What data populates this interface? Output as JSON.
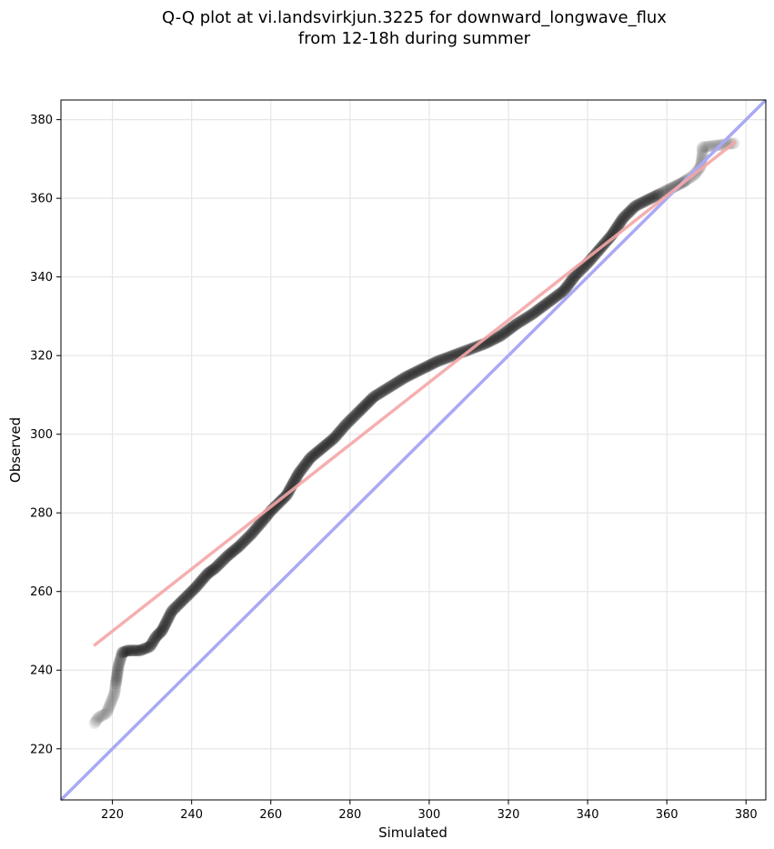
{
  "chart_data": {
    "type": "scatter",
    "title_lines": [
      "Q-Q plot at vi.landsvirkjun.3225 for downward_longwave_flux",
      "from 12-18h during summer"
    ],
    "xlabel": "Simulated",
    "ylabel": "Observed",
    "xlim": [
      207,
      385
    ],
    "ylim": [
      207,
      385
    ],
    "xticks": [
      220,
      240,
      260,
      280,
      300,
      320,
      340,
      360,
      380
    ],
    "yticks": [
      220,
      240,
      260,
      280,
      300,
      320,
      340,
      360,
      380
    ],
    "grid": true,
    "colors": {
      "points": "#000000",
      "fit_line": "#f4a6a6",
      "identity_line": "#a9a9f4",
      "grid": "#e6e6e6"
    },
    "identity_line": {
      "from": [
        207,
        207
      ],
      "to": [
        385,
        385
      ]
    },
    "fit_line": {
      "from": [
        215.3,
        246.2
      ],
      "to": [
        377.5,
        374.5
      ]
    },
    "quantile_curve": [
      [
        215.5,
        226.5
      ],
      [
        216.5,
        228
      ],
      [
        218.5,
        229
      ],
      [
        219.5,
        231.5
      ],
      [
        220.5,
        234
      ],
      [
        221,
        237.5
      ],
      [
        221.5,
        241
      ],
      [
        222.5,
        244.5
      ],
      [
        224,
        245
      ],
      [
        227,
        245
      ],
      [
        229.5,
        246
      ],
      [
        231,
        248.5
      ],
      [
        232.5,
        250
      ],
      [
        233.5,
        252
      ],
      [
        235,
        255
      ],
      [
        238,
        258
      ],
      [
        241,
        261
      ],
      [
        244,
        264.5
      ],
      [
        246,
        266
      ],
      [
        249,
        269
      ],
      [
        252,
        271.5
      ],
      [
        255,
        274.5
      ],
      [
        258,
        278
      ],
      [
        260,
        280.5
      ],
      [
        264,
        284.5
      ],
      [
        267,
        290
      ],
      [
        270,
        294
      ],
      [
        273,
        296.5
      ],
      [
        276,
        299
      ],
      [
        279,
        302.5
      ],
      [
        282,
        305.5
      ],
      [
        286,
        309.5
      ],
      [
        290,
        312
      ],
      [
        294,
        314.5
      ],
      [
        298,
        316.5
      ],
      [
        302,
        318.5
      ],
      [
        306,
        320
      ],
      [
        310,
        321.5
      ],
      [
        314,
        323
      ],
      [
        318,
        325
      ],
      [
        322,
        328
      ],
      [
        326,
        330.5
      ],
      [
        330,
        333.5
      ],
      [
        334,
        336.5
      ],
      [
        337,
        340.5
      ],
      [
        340,
        343.5
      ],
      [
        343,
        347
      ],
      [
        346,
        350.5
      ],
      [
        349,
        355
      ],
      [
        352,
        358
      ],
      [
        355,
        359.5
      ],
      [
        358,
        361
      ],
      [
        361,
        362.5
      ],
      [
        364,
        364
      ],
      [
        367,
        366
      ],
      [
        368.5,
        368
      ],
      [
        369,
        371
      ],
      [
        369,
        373
      ],
      [
        377,
        374
      ]
    ]
  }
}
